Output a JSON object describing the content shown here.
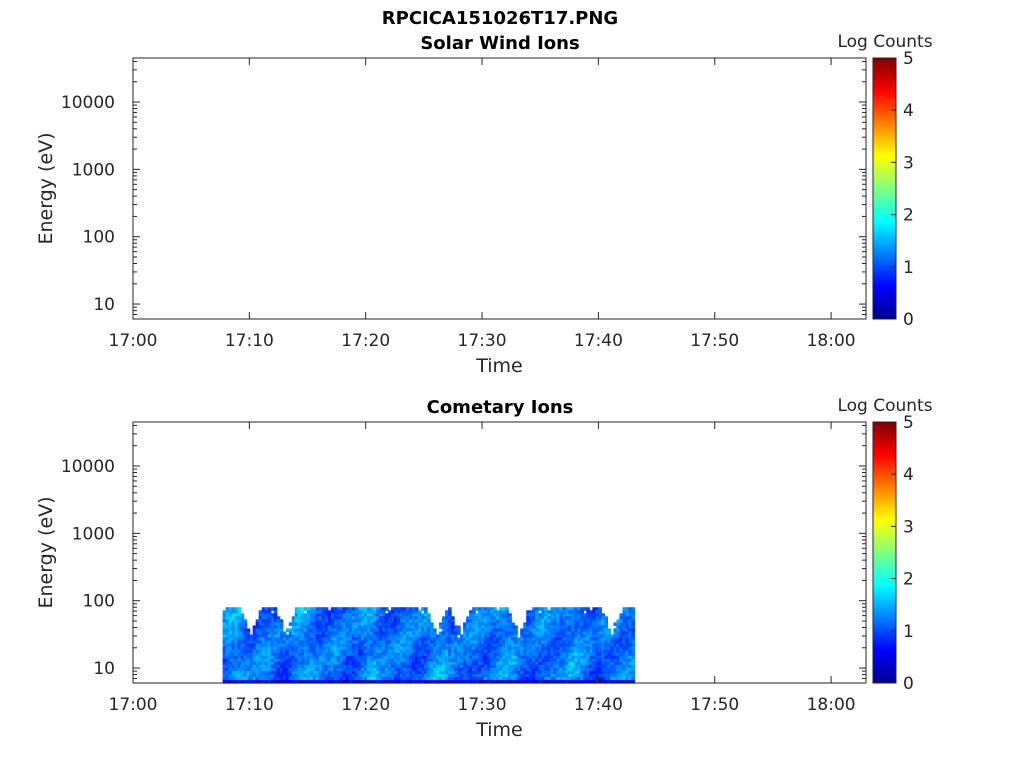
{
  "figure": {
    "title": "RPCICA151026T17.PNG"
  },
  "colors": {
    "colormap": "jet",
    "axis": "#262626",
    "background": "#ffffff"
  },
  "chart_data": [
    {
      "type": "heatmap",
      "title": "Solar Wind Ions",
      "xlabel": "Time",
      "ylabel": "Energy (eV)",
      "colorbar_label": "Log Counts",
      "colorbar_ticks": [
        "0",
        "1",
        "2",
        "3",
        "4",
        "5"
      ],
      "colorbar_range": [
        0,
        5
      ],
      "x_ticks": [
        "17:00",
        "17:10",
        "17:20",
        "17:30",
        "17:40",
        "17:50",
        "18:00"
      ],
      "y_ticks": [
        "10",
        "100",
        "1000",
        "10000"
      ],
      "y_scale": "log",
      "ylim": [
        6,
        45000
      ],
      "xlim": [
        "17:00",
        "18:03"
      ],
      "grid": false,
      "data_present": false,
      "data_extent": null
    },
    {
      "type": "heatmap",
      "title": "Cometary Ions",
      "xlabel": "Time",
      "ylabel": "Energy (eV)",
      "colorbar_label": "Log Counts",
      "colorbar_ticks": [
        "0",
        "1",
        "2",
        "3",
        "4",
        "5"
      ],
      "colorbar_range": [
        0,
        5
      ],
      "x_ticks": [
        "17:00",
        "17:10",
        "17:20",
        "17:30",
        "17:40",
        "17:50",
        "18:00"
      ],
      "y_ticks": [
        "10",
        "100",
        "1000",
        "10000"
      ],
      "y_scale": "log",
      "ylim": [
        6,
        45000
      ],
      "xlim": [
        "17:00",
        "18:03"
      ],
      "grid": false,
      "data_present": true,
      "data_extent": {
        "time_start": "17:07.7",
        "time_end": "17:43.1",
        "energy_min": 6,
        "energy_max": 80
      },
      "typical_log_counts": [
        0.8,
        1.8
      ],
      "white_gaps_top_near": [
        "17:10",
        "17:13",
        "17:26",
        "17:28",
        "17:33",
        "17:41"
      ]
    }
  ]
}
